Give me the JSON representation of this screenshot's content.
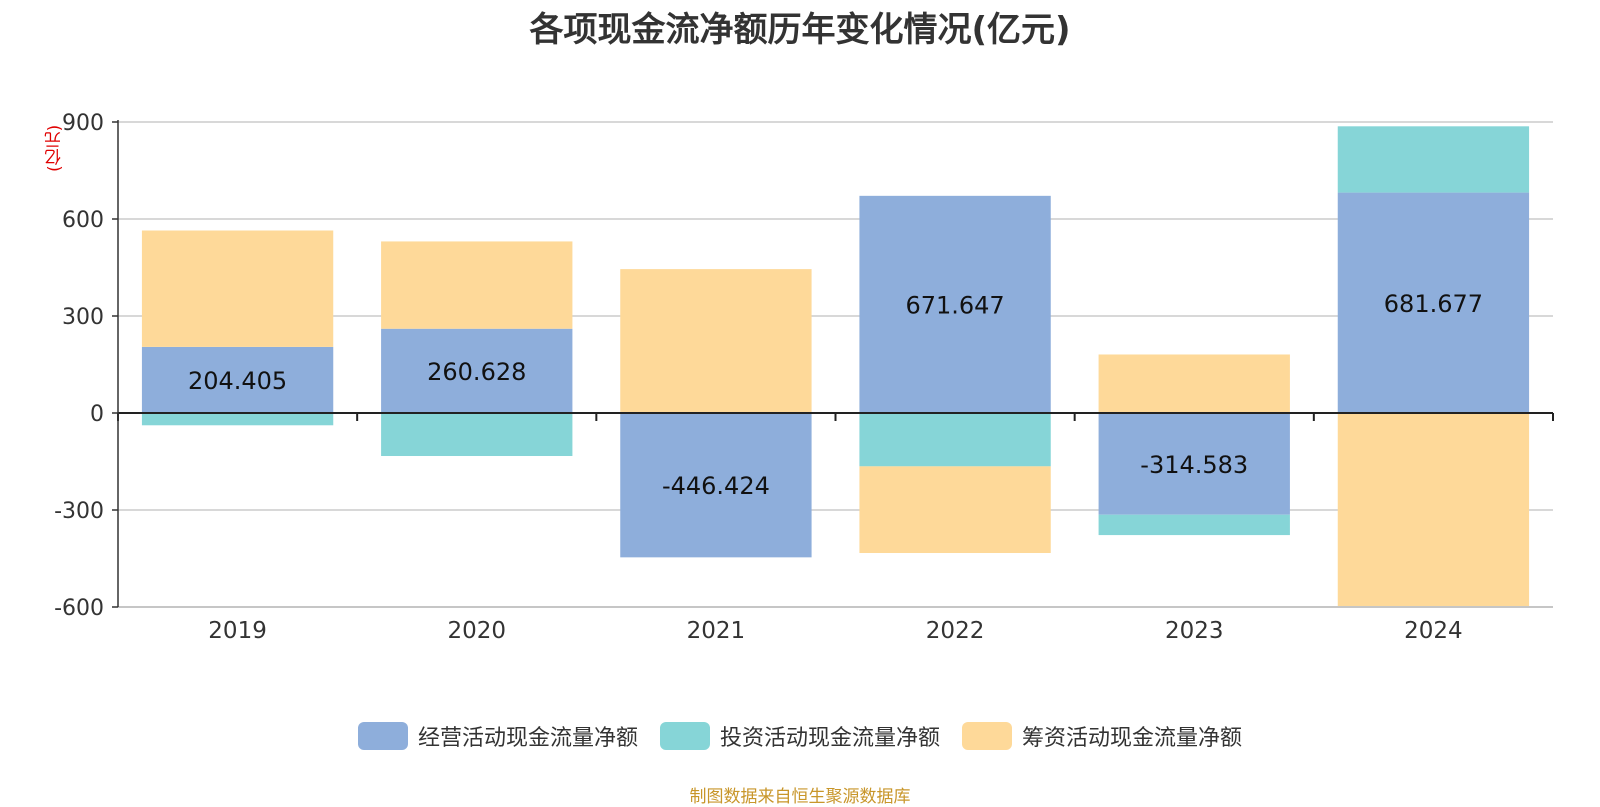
{
  "chart_data": {
    "type": "bar",
    "stacked": true,
    "title": "各项现金流净额历年变化情况(亿元)",
    "y_unit_label": "(亿元)",
    "categories": [
      "2019",
      "2020",
      "2021",
      "2022",
      "2023",
      "2024"
    ],
    "series": [
      {
        "name": "经营活动现金流量净额",
        "color": "#8eaedb",
        "values": [
          204.405,
          260.628,
          -446.424,
          671.647,
          -314.583,
          681.677
        ],
        "labels": [
          "204.405",
          "260.628",
          "-446.424",
          "671.647",
          "-314.583",
          "681.677"
        ]
      },
      {
        "name": "投资活动现金流量净额",
        "color": "#86d5d7",
        "values": [
          -38,
          -133,
          0,
          -165,
          -63,
          205
        ]
      },
      {
        "name": "筹资活动现金流量净额",
        "color": "#fed999",
        "values": [
          360,
          270,
          445,
          -268,
          181,
          -597
        ]
      }
    ],
    "ylim": [
      -600,
      900
    ],
    "yticks": [
      "-600",
      "-300",
      "0",
      "300",
      "600",
      "900"
    ],
    "grid": true,
    "legend_position": "bottom"
  },
  "source_note": "制图数据来自恒生聚源数据库"
}
